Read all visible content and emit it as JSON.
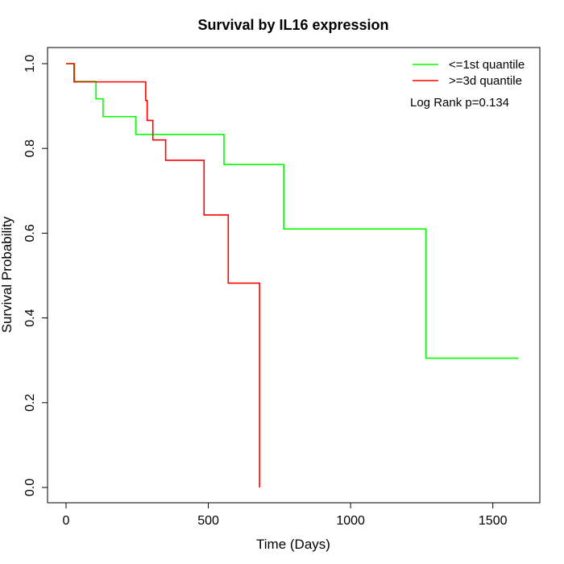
{
  "chart_data": {
    "type": "line",
    "title": "Survival by IL16 expression",
    "xlabel": "Time (Days)",
    "ylabel": "Survival Probability",
    "xlim": [
      0,
      1600
    ],
    "ylim": [
      0,
      1
    ],
    "x_ticks": [
      0,
      500,
      1000,
      1500
    ],
    "y_ticks": [
      0.0,
      0.2,
      0.4,
      0.6,
      0.8,
      1.0
    ],
    "x_tick_labels": [
      "0",
      "500",
      "1000",
      "1500"
    ],
    "y_tick_labels": [
      "0.0",
      "0.2",
      "0.4",
      "0.6",
      "0.8",
      "1.0"
    ],
    "grid": false,
    "legend_position": "top-right",
    "annotation": "Log Rank p=0.134",
    "series": [
      {
        "name": "<=1st quantile",
        "color": "#00ff00",
        "step": true,
        "points": [
          [
            0,
            1.0
          ],
          [
            30,
            0.958
          ],
          [
            105,
            0.917
          ],
          [
            130,
            0.875
          ],
          [
            245,
            0.833
          ],
          [
            555,
            0.762
          ],
          [
            765,
            0.61
          ],
          [
            1265,
            0.305
          ],
          [
            1590,
            0.305
          ]
        ]
      },
      {
        "name": ">=3d quantile",
        "color": "#ff0000",
        "step": true,
        "points": [
          [
            0,
            1.0
          ],
          [
            28,
            0.957
          ],
          [
            280,
            0.913
          ],
          [
            285,
            0.866
          ],
          [
            305,
            0.82
          ],
          [
            350,
            0.772
          ],
          [
            485,
            0.643
          ],
          [
            570,
            0.482
          ],
          [
            680,
            0.0
          ]
        ]
      }
    ]
  }
}
